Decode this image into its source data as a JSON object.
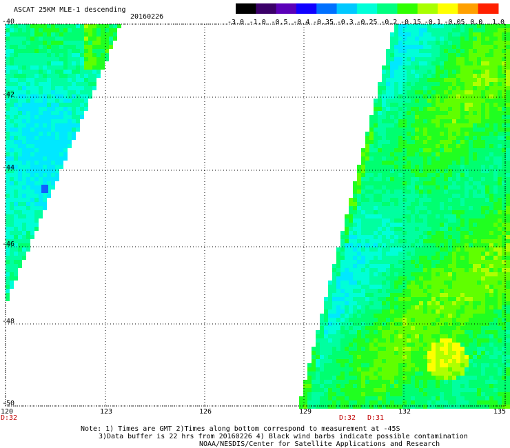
{
  "header": {
    "title": "ASCAT 25KM MLE-1 descending",
    "date": "20160226"
  },
  "colorbar": {
    "labels": [
      "-3.0",
      "-1.0",
      "-0.5",
      "-0.4",
      "-0.35",
      "-0.3",
      "-0.25",
      "-0.2",
      "-0.15",
      "-0.1",
      "-0.05",
      "0.0",
      "1.0"
    ],
    "colors": [
      "#000000",
      "#3a0068",
      "#5a00b8",
      "#1000ff",
      "#0070ff",
      "#00c8ff",
      "#00ffd8",
      "#00ff80",
      "#30ff00",
      "#a8ff00",
      "#ffff00",
      "#ffa000",
      "#ff2000"
    ]
  },
  "axes": {
    "lat_labels": [
      "-40",
      "-42",
      "-44",
      "-46",
      "-48",
      "-50"
    ],
    "lon_labels": [
      "120",
      "123",
      "126",
      "129",
      "132",
      "135"
    ]
  },
  "times": {
    "left": "D:32",
    "mid1": "D:32",
    "mid2": "D:31"
  },
  "notes": {
    "line1": "Note: 1) Times are GMT 2)Times along bottom correspond to measurement at -45S",
    "line2": "3)Data buffer is 22 hrs from 20160226 4) Black wind barbs indicate possible contamination",
    "line3": "NOAA/NESDIS/Center for Satellite Applications and Research"
  }
}
